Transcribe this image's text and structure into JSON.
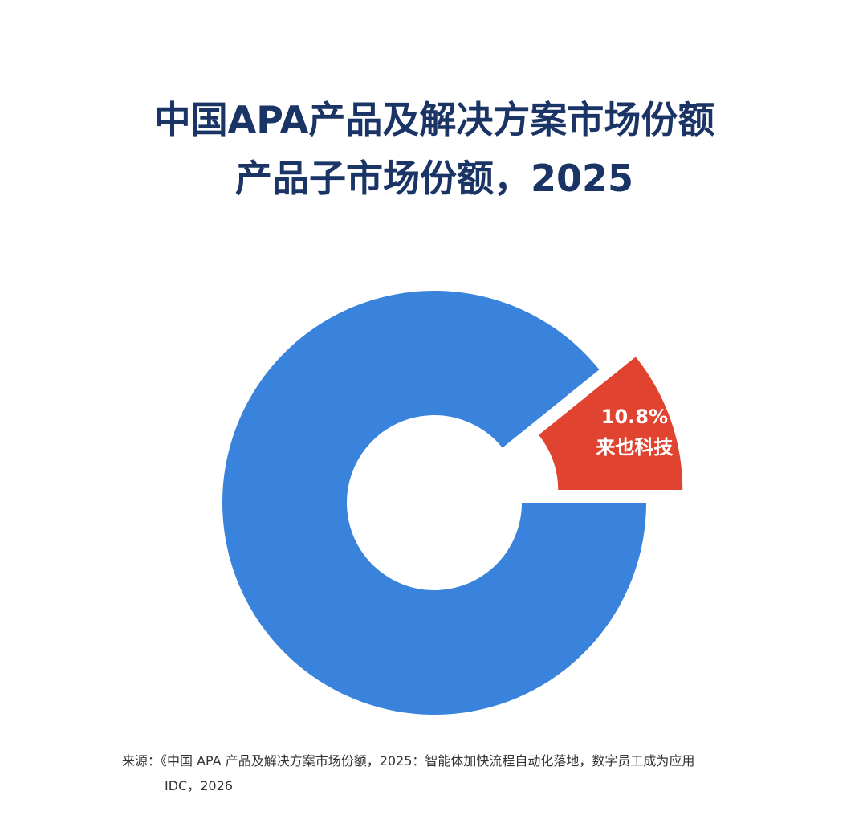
{
  "chart_data": {
    "type": "pie",
    "title": [
      "中国APA产品及解决方案市场份额",
      "产品子市场份额，2025"
    ],
    "categories": [
      "来也科技",
      null
    ],
    "values": [
      10.8,
      89.2
    ],
    "value_labels": [
      "10.8%",
      null
    ],
    "colors": [
      "#e0432f",
      "#3a83dc"
    ],
    "donut": true,
    "source": [
      "来源：《中国 APA 产品及解决方案市场份额，2025：智能体加快流程自动化落地，数字员工成为应用",
      "IDC，2026"
    ]
  }
}
